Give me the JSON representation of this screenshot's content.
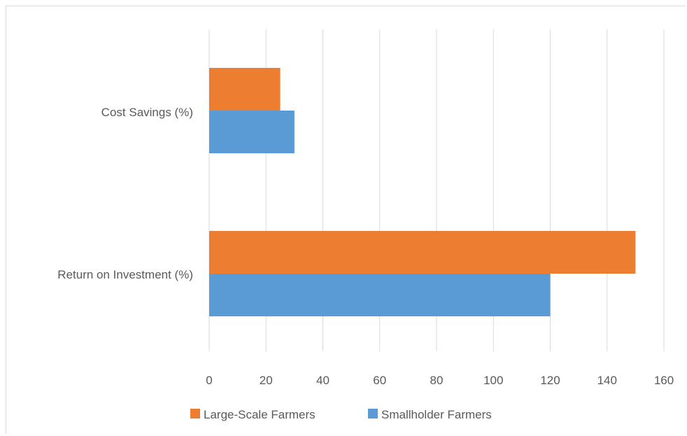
{
  "chart_data": {
    "type": "bar",
    "orientation": "horizontal",
    "categories": [
      "Cost Savings (%)",
      "Return on Investment (%)"
    ],
    "series": [
      {
        "name": "Smallholder Farmers",
        "color": "#5b9bd5",
        "values": [
          30,
          120
        ]
      },
      {
        "name": "Large-Scale Farmers",
        "color": "#ed7d31",
        "values": [
          25,
          150
        ]
      }
    ],
    "x_ticks": [
      "0",
      "20",
      "40",
      "60",
      "80",
      "100",
      "120",
      "140",
      "160"
    ],
    "xlim": [
      0,
      160
    ],
    "grid": true,
    "legend_position": "bottom",
    "legend_order": [
      "Large-Scale Farmers",
      "Smallholder Farmers"
    ]
  }
}
